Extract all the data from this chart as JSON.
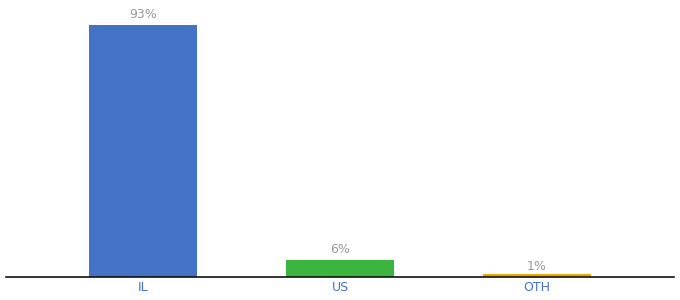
{
  "categories": [
    "IL",
    "US",
    "OTH"
  ],
  "values": [
    93,
    6,
    1
  ],
  "bar_colors": [
    "#4472c4",
    "#3cb540",
    "#f0a500"
  ],
  "labels": [
    "93%",
    "6%",
    "1%"
  ],
  "background_color": "#ffffff",
  "label_color": "#999999",
  "label_fontsize": 9,
  "tick_fontsize": 9,
  "tick_color": "#4472c4",
  "ylim": [
    0,
    100
  ],
  "bar_width": 0.55,
  "xlim": [
    0.3,
    3.7
  ]
}
